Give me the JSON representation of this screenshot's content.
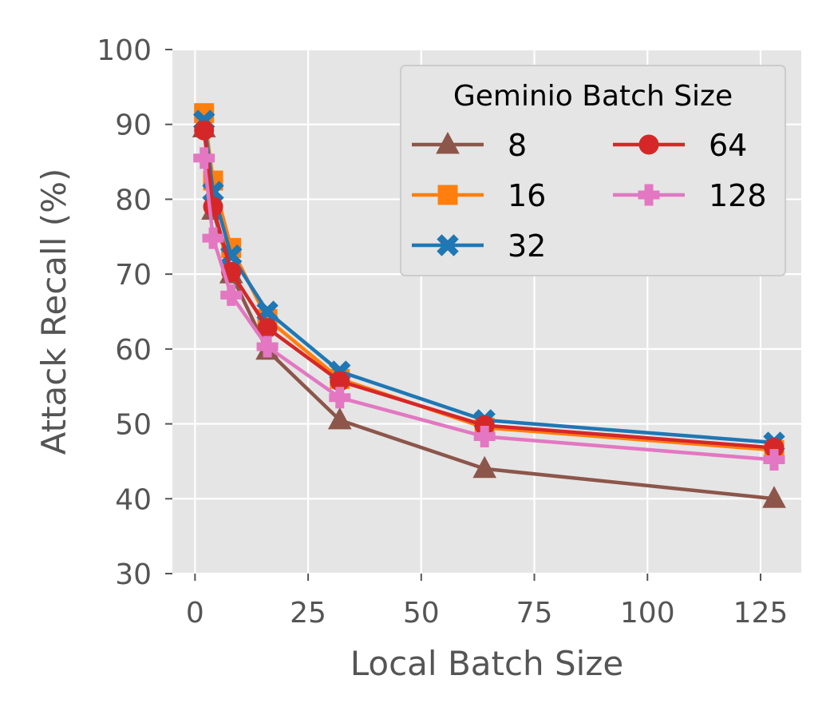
{
  "chart_data": {
    "type": "line",
    "title": "",
    "xlabel": "Local Batch Size",
    "ylabel": "Attack Recall (%)",
    "xlim": [
      -5,
      134
    ],
    "ylim": [
      30,
      100
    ],
    "x_ticks": [
      0,
      25,
      50,
      75,
      100,
      125
    ],
    "y_ticks": [
      30,
      40,
      50,
      60,
      70,
      80,
      90,
      100
    ],
    "grid": true,
    "legend": {
      "title": "Geminio Batch Size",
      "placement": "top-right",
      "columns": 2
    },
    "x": [
      2,
      4,
      8,
      16,
      32,
      64,
      128
    ],
    "series": [
      {
        "name": "8",
        "color": "#8c564b",
        "marker": "triangle",
        "values": [
          89.5,
          78.5,
          70.0,
          59.8,
          50.5,
          44.0,
          40.0
        ]
      },
      {
        "name": "16",
        "color": "#ff7f0e",
        "marker": "square",
        "values": [
          91.5,
          82.5,
          73.5,
          64.0,
          56.0,
          49.5,
          46.5
        ]
      },
      {
        "name": "32",
        "color": "#1f77b4",
        "marker": "x-filled",
        "values": [
          90.5,
          81.0,
          72.5,
          65.0,
          57.0,
          50.5,
          47.5
        ]
      },
      {
        "name": "64",
        "color": "#d62728",
        "marker": "circle",
        "values": [
          89.2,
          79.0,
          70.3,
          62.8,
          55.7,
          49.8,
          46.8
        ]
      },
      {
        "name": "128",
        "color": "#e377c2",
        "marker": "plus-filled",
        "values": [
          85.5,
          74.8,
          67.2,
          60.3,
          53.5,
          48.3,
          45.2
        ]
      }
    ]
  }
}
